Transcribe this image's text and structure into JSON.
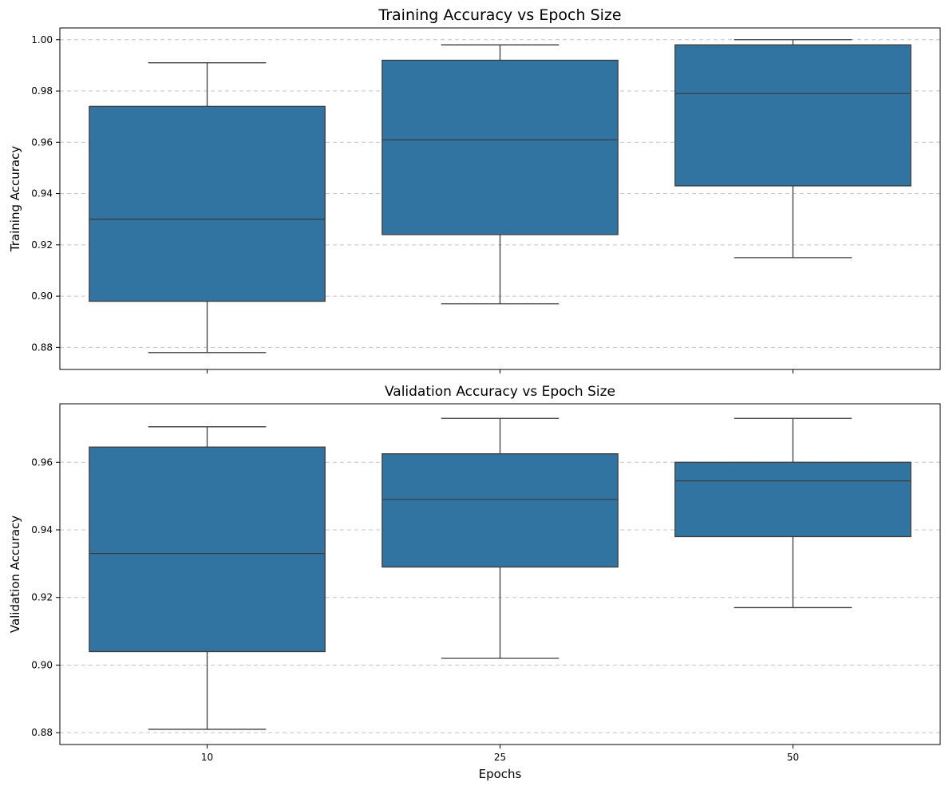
{
  "chart_data": [
    {
      "type": "box",
      "title": "Training Accuracy vs Epoch Size",
      "xlabel": "",
      "ylabel": "Training Accuracy",
      "ylim": [
        0.8714,
        1.0046
      ],
      "yticks": [
        "0.88",
        "0.90",
        "0.92",
        "0.94",
        "0.96",
        "0.98",
        "1.00"
      ],
      "ytick_values": [
        0.88,
        0.9,
        0.92,
        0.94,
        0.96,
        0.98,
        1.0
      ],
      "show_x_tick_labels": false,
      "grid": "y-dashed",
      "categories": [
        "10",
        "25",
        "50"
      ],
      "boxes": [
        {
          "category": "10",
          "whisker_low": 0.878,
          "q1": 0.898,
          "median": 0.93,
          "q3": 0.974,
          "whisker_high": 0.991
        },
        {
          "category": "25",
          "whisker_low": 0.897,
          "q1": 0.924,
          "median": 0.961,
          "q3": 0.992,
          "whisker_high": 0.998
        },
        {
          "category": "50",
          "whisker_low": 0.915,
          "q1": 0.943,
          "median": 0.979,
          "q3": 0.998,
          "whisker_high": 1.0
        }
      ]
    },
    {
      "type": "box",
      "title": "Validation Accuracy vs Epoch Size",
      "xlabel": "Epochs",
      "ylabel": "Validation Accuracy",
      "ylim": [
        0.8765,
        0.9773
      ],
      "yticks": [
        "0.88",
        "0.90",
        "0.92",
        "0.94",
        "0.96"
      ],
      "ytick_values": [
        0.88,
        0.9,
        0.92,
        0.94,
        0.96
      ],
      "show_x_tick_labels": true,
      "grid": "y-dashed",
      "categories": [
        "10",
        "25",
        "50"
      ],
      "boxes": [
        {
          "category": "10",
          "whisker_low": 0.881,
          "q1": 0.904,
          "median": 0.933,
          "q3": 0.9645,
          "whisker_high": 0.9705
        },
        {
          "category": "25",
          "whisker_low": 0.902,
          "q1": 0.929,
          "median": 0.949,
          "q3": 0.9625,
          "whisker_high": 0.973
        },
        {
          "category": "50",
          "whisker_low": 0.917,
          "q1": 0.938,
          "median": 0.9545,
          "q3": 0.96,
          "whisker_high": 0.973
        }
      ]
    }
  ],
  "colors": {
    "box_fill": "#3274a1",
    "box_edge": "#3d3d3d",
    "grid": "#c4c4c4",
    "axis": "#000000"
  }
}
